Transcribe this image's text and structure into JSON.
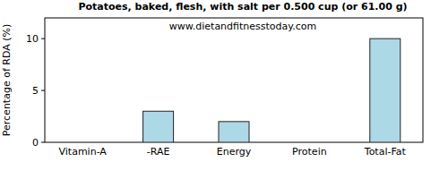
{
  "chart_data": {
    "type": "bar",
    "title": "Potatoes, baked, flesh, with salt per 0.500 cup (or 61.00 g)",
    "subtitle": "www.dietandfitnesstoday.com",
    "y_label": "Percentage of RDA (%)",
    "categories": [
      "Vitamin-A",
      "-RAE",
      "Energy",
      "Protein",
      "Total-Fat"
    ],
    "values": [
      0,
      3,
      2,
      0,
      10
    ],
    "color": "#add8e6",
    "ylim": [
      0,
      12
    ],
    "yticks": [
      0,
      5,
      10
    ],
    "grid": false
  }
}
